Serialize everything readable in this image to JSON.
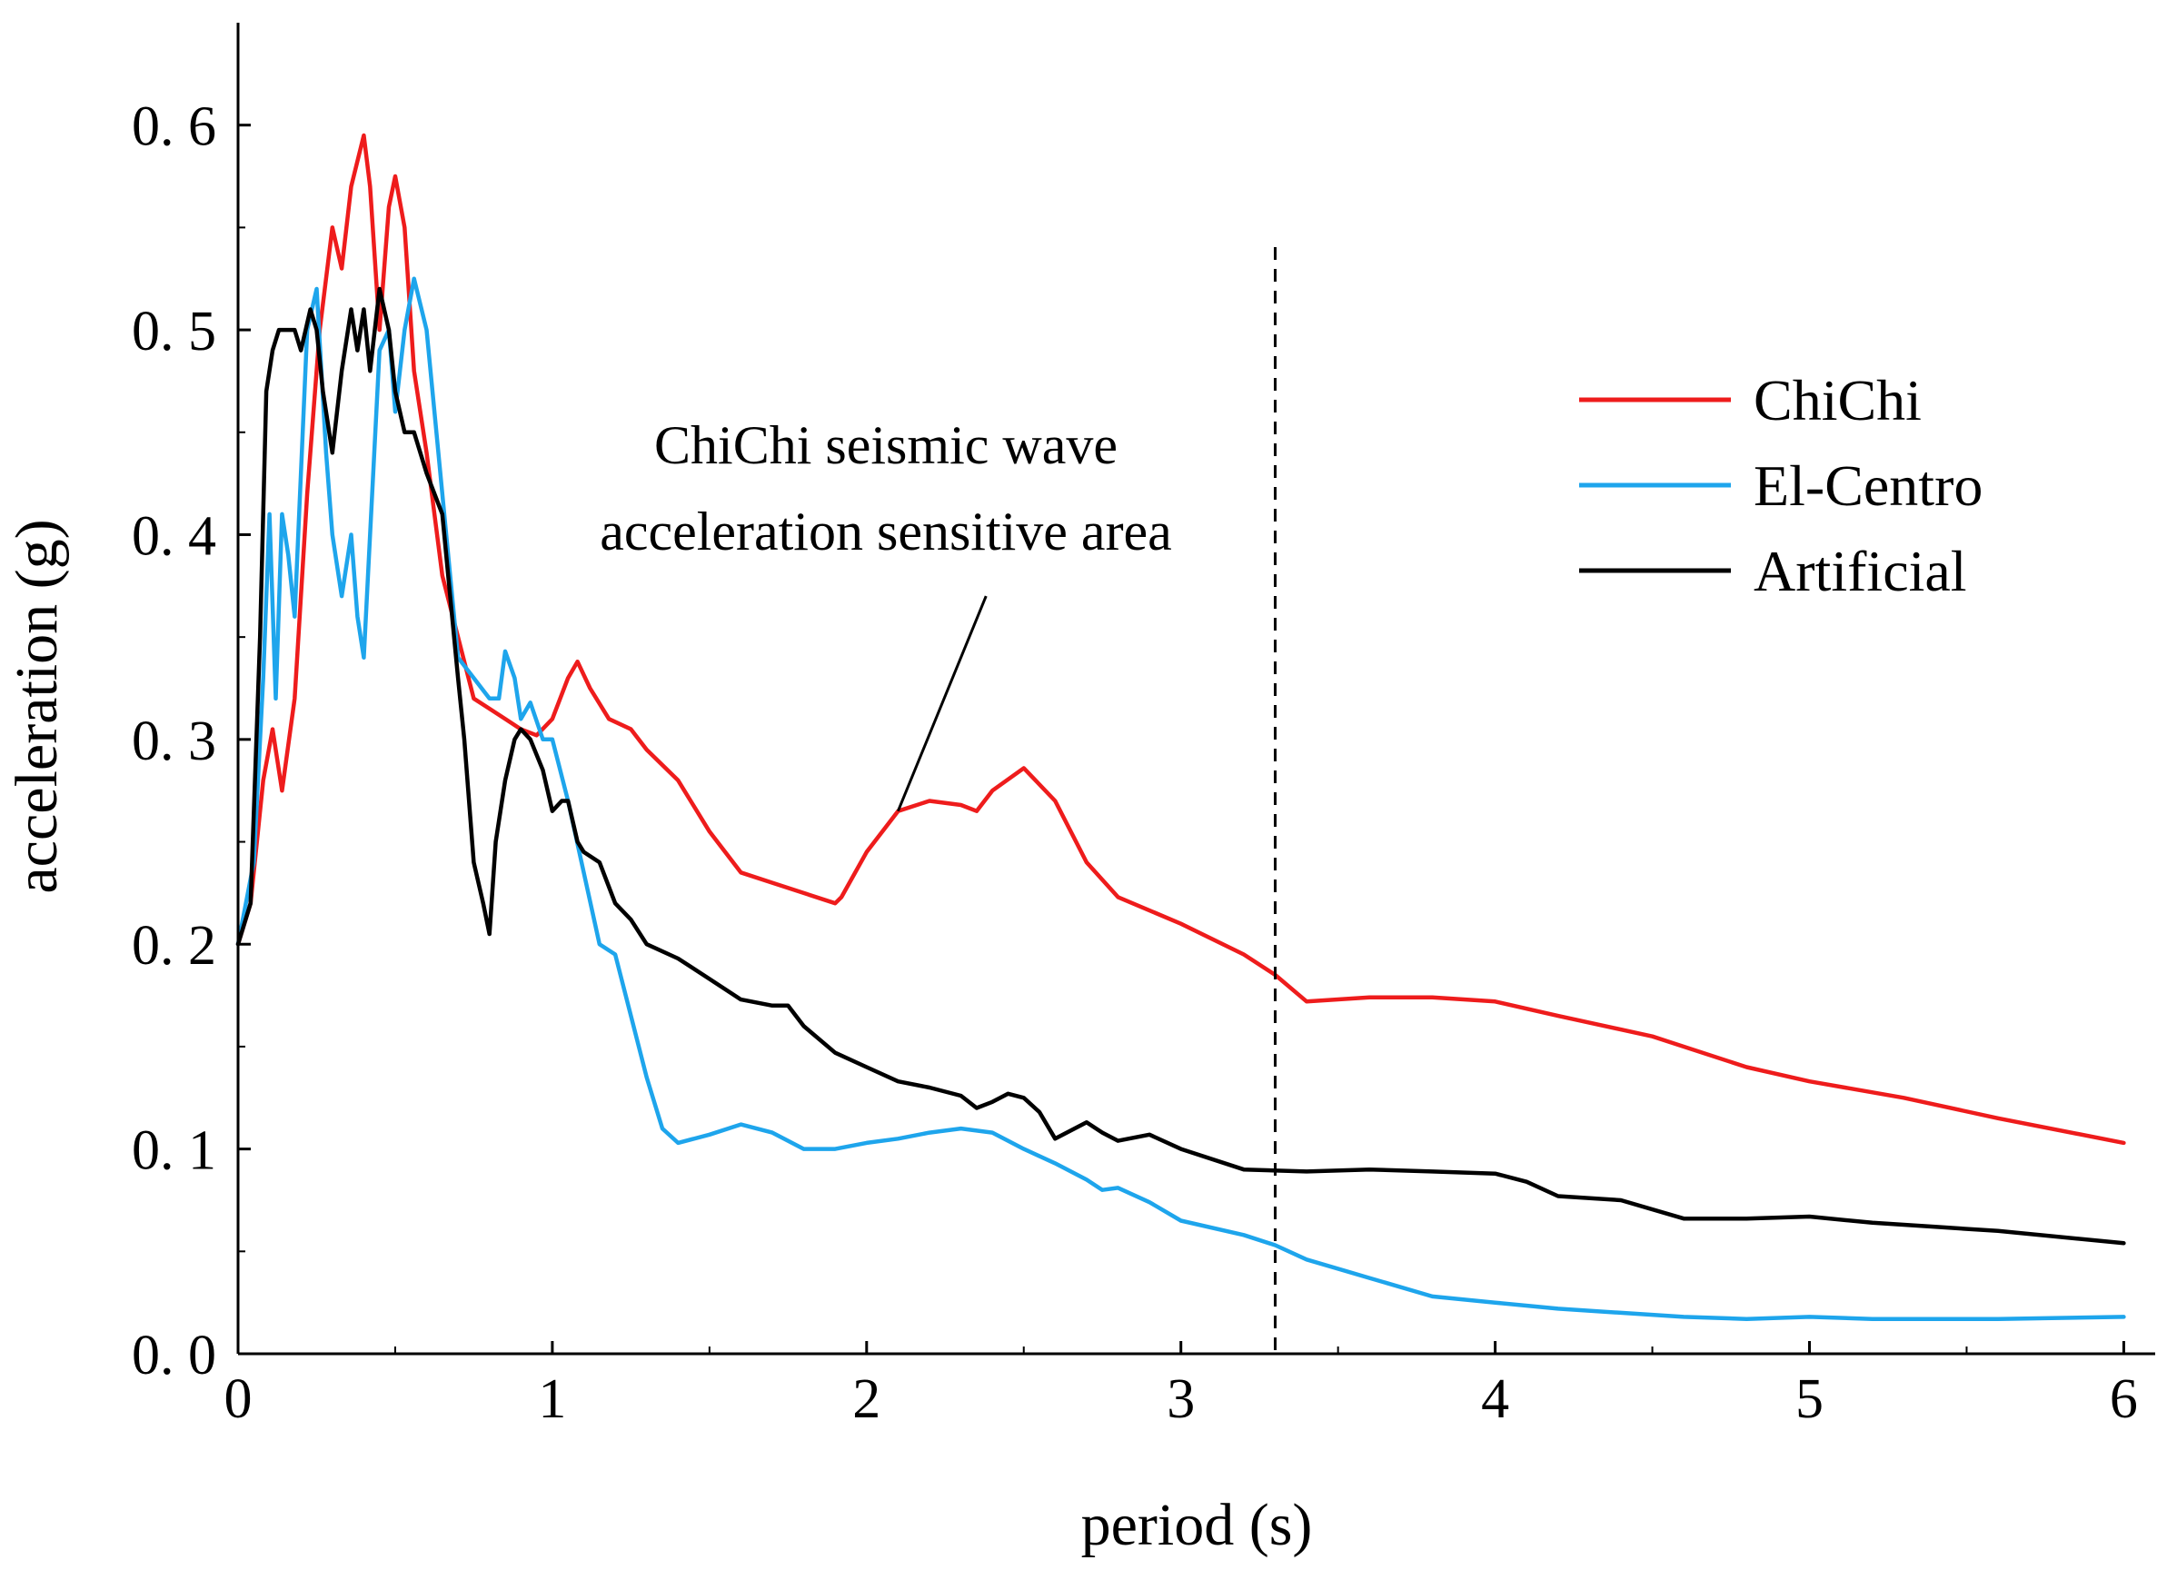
{
  "chart_data": {
    "type": "line",
    "title": "",
    "xlabel": "period (s)",
    "ylabel": "acceleration (g)",
    "xlim": [
      0,
      6.1
    ],
    "ylim": [
      0,
      0.65
    ],
    "xticks": [
      0,
      1,
      2,
      3,
      4,
      5,
      6
    ],
    "xtick_labels": [
      "0",
      "1",
      "2",
      "3",
      "4",
      "5",
      "6"
    ],
    "yticks": [
      0.0,
      0.1,
      0.2,
      0.3,
      0.4,
      0.5,
      0.6
    ],
    "ytick_labels": [
      "0. 0",
      "0. 1",
      "0. 2",
      "0. 3",
      "0. 4",
      "0. 5",
      "0. 6"
    ],
    "grid": false,
    "legend_position": "top-right",
    "reference_line": {
      "x": 3.3,
      "style": "dashed"
    },
    "annotation": {
      "lines": [
        "ChiChi seismic wave",
        "acceleration sensitive area"
      ],
      "points_to": {
        "x": 2.1,
        "y": 0.265
      },
      "text_anchor": {
        "x": 2.38,
        "y": 0.37
      }
    },
    "series": [
      {
        "name": "ChiChi",
        "color": "#ee1c1c",
        "x": [
          0,
          0.04,
          0.08,
          0.11,
          0.14,
          0.18,
          0.22,
          0.26,
          0.3,
          0.33,
          0.36,
          0.4,
          0.42,
          0.45,
          0.48,
          0.5,
          0.53,
          0.56,
          0.6,
          0.65,
          0.7,
          0.75,
          0.8,
          0.85,
          0.9,
          0.95,
          1.0,
          1.05,
          1.08,
          1.12,
          1.18,
          1.25,
          1.3,
          1.4,
          1.5,
          1.6,
          1.7,
          1.8,
          1.9,
          1.92,
          2.0,
          2.1,
          2.2,
          2.3,
          2.35,
          2.4,
          2.5,
          2.6,
          2.7,
          2.8,
          3.0,
          3.2,
          3.3,
          3.4,
          3.6,
          3.8,
          4.0,
          4.2,
          4.5,
          4.8,
          5.0,
          5.3,
          5.6,
          6.0
        ],
        "y": [
          0.2,
          0.22,
          0.28,
          0.305,
          0.275,
          0.32,
          0.42,
          0.5,
          0.55,
          0.53,
          0.57,
          0.595,
          0.57,
          0.5,
          0.56,
          0.575,
          0.55,
          0.48,
          0.44,
          0.38,
          0.35,
          0.32,
          0.315,
          0.31,
          0.305,
          0.302,
          0.31,
          0.33,
          0.338,
          0.325,
          0.31,
          0.305,
          0.295,
          0.28,
          0.255,
          0.235,
          0.23,
          0.225,
          0.22,
          0.223,
          0.245,
          0.265,
          0.27,
          0.268,
          0.265,
          0.275,
          0.286,
          0.27,
          0.24,
          0.223,
          0.21,
          0.195,
          0.185,
          0.172,
          0.174,
          0.174,
          0.172,
          0.165,
          0.155,
          0.14,
          0.133,
          0.125,
          0.115,
          0.103
        ]
      },
      {
        "name": "El-Centro",
        "color": "#1ea5ec",
        "x": [
          0,
          0.05,
          0.08,
          0.1,
          0.12,
          0.14,
          0.16,
          0.18,
          0.2,
          0.22,
          0.25,
          0.28,
          0.3,
          0.33,
          0.36,
          0.38,
          0.4,
          0.42,
          0.45,
          0.48,
          0.5,
          0.53,
          0.56,
          0.6,
          0.65,
          0.7,
          0.75,
          0.8,
          0.83,
          0.85,
          0.88,
          0.9,
          0.93,
          0.97,
          1.0,
          1.05,
          1.1,
          1.15,
          1.2,
          1.25,
          1.3,
          1.35,
          1.4,
          1.5,
          1.6,
          1.7,
          1.8,
          1.9,
          2.0,
          2.1,
          2.2,
          2.3,
          2.4,
          2.5,
          2.6,
          2.7,
          2.75,
          2.8,
          2.9,
          3.0,
          3.2,
          3.3,
          3.4,
          3.6,
          3.8,
          4.0,
          4.2,
          4.4,
          4.6,
          4.8,
          5.0,
          5.2,
          5.4,
          5.6,
          6.0
        ],
        "y": [
          0.2,
          0.24,
          0.33,
          0.41,
          0.32,
          0.41,
          0.39,
          0.36,
          0.43,
          0.5,
          0.52,
          0.44,
          0.4,
          0.37,
          0.4,
          0.36,
          0.34,
          0.4,
          0.49,
          0.5,
          0.46,
          0.5,
          0.525,
          0.5,
          0.42,
          0.34,
          0.33,
          0.32,
          0.32,
          0.343,
          0.33,
          0.31,
          0.318,
          0.3,
          0.3,
          0.27,
          0.235,
          0.2,
          0.195,
          0.165,
          0.135,
          0.11,
          0.103,
          0.107,
          0.112,
          0.108,
          0.1,
          0.1,
          0.103,
          0.105,
          0.108,
          0.11,
          0.108,
          0.1,
          0.093,
          0.085,
          0.08,
          0.081,
          0.074,
          0.065,
          0.058,
          0.053,
          0.046,
          0.037,
          0.028,
          0.025,
          0.022,
          0.02,
          0.018,
          0.017,
          0.018,
          0.017,
          0.017,
          0.017,
          0.018
        ]
      },
      {
        "name": "Artificial",
        "color": "#000000",
        "x": [
          0,
          0.04,
          0.07,
          0.09,
          0.11,
          0.13,
          0.15,
          0.18,
          0.2,
          0.23,
          0.25,
          0.27,
          0.3,
          0.33,
          0.36,
          0.38,
          0.4,
          0.42,
          0.45,
          0.48,
          0.5,
          0.53,
          0.56,
          0.6,
          0.65,
          0.7,
          0.72,
          0.75,
          0.78,
          0.8,
          0.82,
          0.85,
          0.88,
          0.9,
          0.93,
          0.97,
          1.0,
          1.03,
          1.05,
          1.08,
          1.1,
          1.15,
          1.2,
          1.25,
          1.3,
          1.4,
          1.5,
          1.6,
          1.7,
          1.75,
          1.8,
          1.9,
          2.0,
          2.1,
          2.2,
          2.3,
          2.35,
          2.4,
          2.45,
          2.5,
          2.55,
          2.6,
          2.7,
          2.75,
          2.8,
          2.9,
          3.0,
          3.2,
          3.4,
          3.6,
          3.8,
          4.0,
          4.1,
          4.2,
          4.4,
          4.6,
          4.8,
          5.0,
          5.2,
          5.4,
          5.6,
          6.0
        ],
        "y": [
          0.2,
          0.22,
          0.35,
          0.47,
          0.49,
          0.5,
          0.5,
          0.5,
          0.49,
          0.51,
          0.5,
          0.47,
          0.44,
          0.48,
          0.51,
          0.49,
          0.51,
          0.48,
          0.52,
          0.5,
          0.47,
          0.45,
          0.45,
          0.43,
          0.41,
          0.33,
          0.3,
          0.24,
          0.22,
          0.205,
          0.25,
          0.28,
          0.3,
          0.305,
          0.3,
          0.285,
          0.265,
          0.27,
          0.27,
          0.25,
          0.245,
          0.24,
          0.22,
          0.212,
          0.2,
          0.193,
          0.183,
          0.173,
          0.17,
          0.17,
          0.16,
          0.147,
          0.14,
          0.133,
          0.13,
          0.126,
          0.12,
          0.123,
          0.127,
          0.125,
          0.118,
          0.105,
          0.113,
          0.108,
          0.104,
          0.107,
          0.1,
          0.09,
          0.089,
          0.09,
          0.089,
          0.088,
          0.084,
          0.077,
          0.075,
          0.066,
          0.066,
          0.067,
          0.064,
          0.062,
          0.06,
          0.054
        ]
      }
    ]
  }
}
